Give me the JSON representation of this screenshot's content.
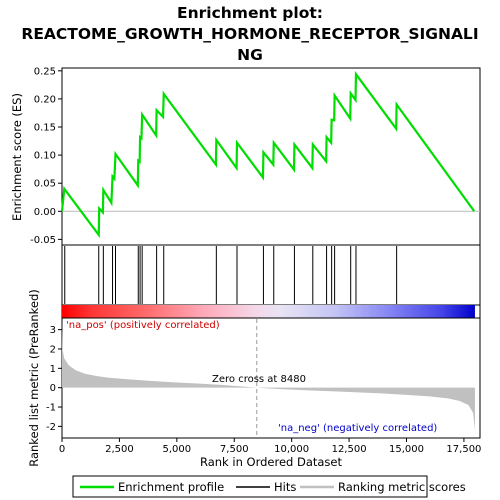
{
  "chart_data": {
    "type": "line",
    "title_lines": [
      "Enrichment plot:",
      "REACTOME_GROWTH_HORMONE_RECEPTOR_SIGNALI",
      "NG"
    ],
    "xlabel": "Rank in Ordered Dataset",
    "xlim": [
      0,
      18200
    ],
    "x_ticks": [
      0,
      2500,
      5000,
      7500,
      10000,
      12500,
      15000,
      17500
    ],
    "x_tick_labels": [
      "0",
      "2,500",
      "5,000",
      "7,500",
      "10,000",
      "12,500",
      "15,000",
      "17,500"
    ],
    "es_panel": {
      "ylabel": "Enrichment score (ES)",
      "ylim": [
        -0.06,
        0.255
      ],
      "y_ticks": [
        -0.05,
        0.0,
        0.05,
        0.1,
        0.15,
        0.2,
        0.25
      ],
      "y_tick_labels": [
        "-0.05",
        "0.00",
        "0.05",
        "0.10",
        "0.15",
        "0.20",
        "0.25"
      ],
      "color": "#00dd00",
      "profile": [
        [
          0,
          0.0
        ],
        [
          100,
          0.04
        ],
        [
          1600,
          -0.042
        ],
        [
          1620,
          0.005
        ],
        [
          1780,
          -0.002
        ],
        [
          1800,
          0.038
        ],
        [
          2150,
          0.015
        ],
        [
          2200,
          0.062
        ],
        [
          2280,
          0.058
        ],
        [
          2330,
          0.102
        ],
        [
          3300,
          0.046
        ],
        [
          3320,
          0.09
        ],
        [
          3380,
          0.088
        ],
        [
          3400,
          0.132
        ],
        [
          3460,
          0.13
        ],
        [
          3490,
          0.172
        ],
        [
          4100,
          0.135
        ],
        [
          4120,
          0.18
        ],
        [
          4400,
          0.168
        ],
        [
          4430,
          0.209
        ],
        [
          6700,
          0.083
        ],
        [
          6720,
          0.127
        ],
        [
          7600,
          0.077
        ],
        [
          7620,
          0.122
        ],
        [
          8750,
          0.06
        ],
        [
          8770,
          0.105
        ],
        [
          9200,
          0.083
        ],
        [
          9220,
          0.122
        ],
        [
          10100,
          0.074
        ],
        [
          10120,
          0.119
        ],
        [
          10900,
          0.077
        ],
        [
          10920,
          0.119
        ],
        [
          11500,
          0.089
        ],
        [
          11520,
          0.132
        ],
        [
          11720,
          0.122
        ],
        [
          11740,
          0.163
        ],
        [
          11850,
          0.162
        ],
        [
          11870,
          0.206
        ],
        [
          12550,
          0.165
        ],
        [
          12570,
          0.21
        ],
        [
          12780,
          0.198
        ],
        [
          12800,
          0.244
        ],
        [
          14550,
          0.147
        ],
        [
          14570,
          0.19
        ],
        [
          17950,
          0.0
        ]
      ]
    },
    "hits": [
      120,
      1600,
      1800,
      2200,
      2330,
      3320,
      3400,
      3490,
      4120,
      4430,
      6720,
      7620,
      8770,
      9220,
      10120,
      10920,
      11520,
      11740,
      11870,
      12570,
      12800,
      14570
    ],
    "metric_panel": {
      "ylabel": "Ranked list metric (PreRanked)",
      "ylim": [
        -2.6,
        3.6
      ],
      "y_ticks": [
        -2,
        -1,
        0,
        1,
        2,
        3
      ],
      "y_tick_labels": [
        "-2",
        "-1",
        "0",
        "1",
        "2",
        "3"
      ],
      "zero_cross": 8480,
      "zero_cross_label": "Zero cross at 8480",
      "pos_label": "'na_pos' (positively correlated)",
      "neg_label": "'na_neg' (negatively correlated)",
      "curve": [
        [
          0,
          3.4
        ],
        [
          20,
          2.0
        ],
        [
          100,
          1.5
        ],
        [
          300,
          1.15
        ],
        [
          600,
          0.9
        ],
        [
          1000,
          0.72
        ],
        [
          1500,
          0.6
        ],
        [
          2000,
          0.52
        ],
        [
          3000,
          0.42
        ],
        [
          4000,
          0.34
        ],
        [
          5000,
          0.27
        ],
        [
          6000,
          0.21
        ],
        [
          7000,
          0.14
        ],
        [
          8000,
          0.05
        ],
        [
          8480,
          0.0
        ],
        [
          9000,
          -0.04
        ],
        [
          10000,
          -0.1
        ],
        [
          11000,
          -0.15
        ],
        [
          12000,
          -0.2
        ],
        [
          13000,
          -0.25
        ],
        [
          14000,
          -0.3
        ],
        [
          15000,
          -0.37
        ],
        [
          16000,
          -0.45
        ],
        [
          16800,
          -0.55
        ],
        [
          17300,
          -0.68
        ],
        [
          17700,
          -0.9
        ],
        [
          17900,
          -1.3
        ],
        [
          17980,
          -2.2
        ]
      ]
    },
    "legend": {
      "entries": [
        {
          "label": "Enrichment profile",
          "color": "#00dd00"
        },
        {
          "label": "Hits",
          "color": "#000000"
        },
        {
          "label": "Ranking metric scores",
          "color": "#c0c0c0"
        }
      ]
    }
  }
}
